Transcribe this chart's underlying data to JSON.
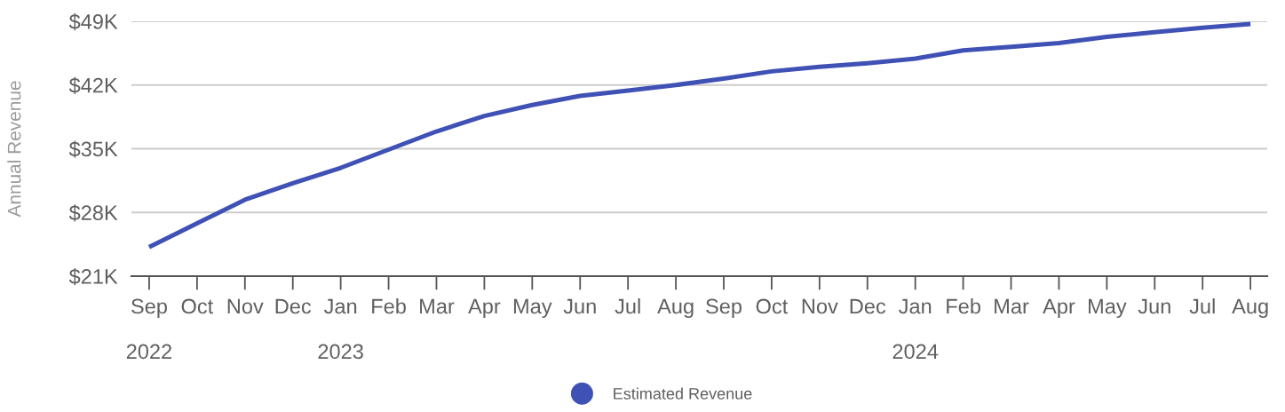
{
  "chart_data": {
    "type": "line",
    "ylabel": "Annual Revenue",
    "categories": [
      "Sep\n\n2022",
      "Oct",
      "Nov",
      "Dec",
      "Jan\n\n2023",
      "Feb",
      "Mar",
      "Apr",
      "May",
      "Jun",
      "Jul",
      "Aug",
      "Sep",
      "Oct",
      "Nov",
      "Dec",
      "Jan\n\n2024",
      "Feb",
      "Mar",
      "Apr",
      "May",
      "Jun",
      "Jul",
      "Aug"
    ],
    "series": [
      {
        "name": "Estimated Revenue",
        "color": "#3f51b5",
        "values": [
          24200,
          26800,
          29400,
          31200,
          32900,
          34900,
          36900,
          38600,
          39800,
          40800,
          41400,
          42000,
          42700,
          43500,
          44000,
          44400,
          44900,
          45800,
          46200,
          46600,
          47300,
          47800,
          48300,
          48700
        ]
      }
    ],
    "ylim": [
      21000,
      49000
    ],
    "yticks": [
      {
        "value": 21000,
        "label": "$21K"
      },
      {
        "value": 28000,
        "label": "$28K"
      },
      {
        "value": 35000,
        "label": "$35K"
      },
      {
        "value": 42000,
        "label": "$42K"
      },
      {
        "value": 49000,
        "label": "$49K"
      }
    ],
    "grid": "y",
    "legend": "bottom",
    "line_style": "solid"
  }
}
